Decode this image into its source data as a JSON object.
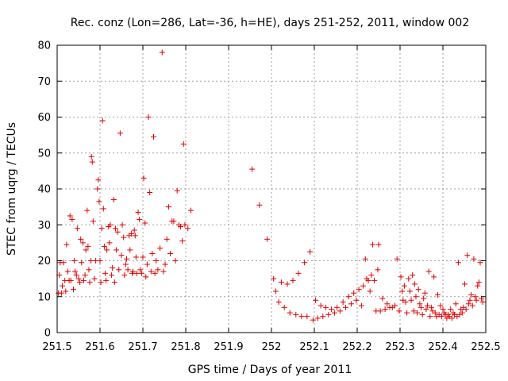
{
  "chart_data": {
    "type": "scatter",
    "title": "Rec. conz (Lon=286, Lat=-36, h=HE), days 251-252, 2011, window 002",
    "xlabel": "GPS time / Days of year 2011",
    "ylabel": "STEC from uqrg / TECUs",
    "xlim": [
      251.5,
      252.5
    ],
    "ylim": [
      0,
      80
    ],
    "xticks": [
      251.5,
      251.6,
      251.7,
      251.8,
      251.9,
      252,
      252.1,
      252.2,
      252.3,
      252.4,
      252.5
    ],
    "xtick_labels": [
      "251.5",
      "251.6",
      "251.7",
      "251.8",
      "251.9",
      "252",
      "252.1",
      "252.2",
      "252.3",
      "252.4",
      "252.5"
    ],
    "yticks": [
      0,
      10,
      20,
      30,
      40,
      50,
      60,
      70,
      80
    ],
    "ytick_labels": [
      "0",
      "10",
      "20",
      "30",
      "40",
      "50",
      "60",
      "70",
      "80"
    ],
    "grid": true,
    "marker": "plus",
    "color": "#e00000",
    "points": [
      [
        251.503,
        11
      ],
      [
        251.505,
        16
      ],
      [
        251.507,
        19.5
      ],
      [
        251.51,
        11
      ],
      [
        251.512,
        13
      ],
      [
        251.515,
        19.5
      ],
      [
        251.518,
        14.5
      ],
      [
        251.52,
        11.5
      ],
      [
        251.522,
        24.5
      ],
      [
        251.525,
        17
      ],
      [
        251.528,
        14.5
      ],
      [
        251.53,
        32.5
      ],
      [
        251.532,
        14.5
      ],
      [
        251.535,
        31.5
      ],
      [
        251.538,
        12
      ],
      [
        251.54,
        20
      ],
      [
        251.542,
        17
      ],
      [
        251.545,
        16
      ],
      [
        251.547,
        29
      ],
      [
        251.55,
        15
      ],
      [
        251.553,
        14
      ],
      [
        251.555,
        26
      ],
      [
        251.557,
        19.5
      ],
      [
        251.56,
        25
      ],
      [
        251.562,
        14.5
      ],
      [
        251.565,
        16
      ],
      [
        251.567,
        23
      ],
      [
        251.57,
        34
      ],
      [
        251.572,
        24
      ],
      [
        251.574,
        17.5
      ],
      [
        251.576,
        14
      ],
      [
        251.579,
        20
      ],
      [
        251.58,
        49
      ],
      [
        251.582,
        47.5
      ],
      [
        251.584,
        31
      ],
      [
        251.587,
        15
      ],
      [
        251.59,
        20
      ],
      [
        251.594,
        40
      ],
      [
        251.596,
        42.5
      ],
      [
        251.598,
        36.5
      ],
      [
        251.6,
        20
      ],
      [
        251.602,
        14
      ],
      [
        251.604,
        29
      ],
      [
        251.606,
        59
      ],
      [
        251.608,
        34.5
      ],
      [
        251.61,
        24
      ],
      [
        251.612,
        16.5
      ],
      [
        251.614,
        14.5
      ],
      [
        251.616,
        23
      ],
      [
        251.62,
        29.5
      ],
      [
        251.622,
        25
      ],
      [
        251.624,
        30
      ],
      [
        251.627,
        16
      ],
      [
        251.629,
        18
      ],
      [
        251.632,
        37
      ],
      [
        251.634,
        14
      ],
      [
        251.636,
        29
      ],
      [
        251.638,
        23
      ],
      [
        251.641,
        28
      ],
      [
        251.644,
        17.5
      ],
      [
        251.647,
        55.5
      ],
      [
        251.65,
        21.5
      ],
      [
        251.652,
        30
      ],
      [
        251.655,
        26.5
      ],
      [
        251.657,
        16
      ],
      [
        251.66,
        19
      ],
      [
        251.662,
        20.5
      ],
      [
        251.665,
        17.5
      ],
      [
        251.668,
        27
      ],
      [
        251.67,
        23
      ],
      [
        251.673,
        27.5
      ],
      [
        251.675,
        16.5
      ],
      [
        251.677,
        17
      ],
      [
        251.68,
        28.5
      ],
      [
        251.682,
        27
      ],
      [
        251.684,
        21
      ],
      [
        251.686,
        16.5
      ],
      [
        251.689,
        33.5
      ],
      [
        251.692,
        31.5
      ],
      [
        251.694,
        17.5
      ],
      [
        251.697,
        16.5
      ],
      [
        251.7,
        21
      ],
      [
        251.702,
        43
      ],
      [
        251.705,
        30.5
      ],
      [
        251.707,
        15.5
      ],
      [
        251.71,
        19
      ],
      [
        251.713,
        60
      ],
      [
        251.716,
        39
      ],
      [
        251.719,
        17
      ],
      [
        251.722,
        22
      ],
      [
        251.725,
        54.5
      ],
      [
        251.728,
        16.5
      ],
      [
        251.731,
        20
      ],
      [
        251.735,
        17.5
      ],
      [
        251.74,
        23.5
      ],
      [
        251.745,
        78
      ],
      [
        251.748,
        17
      ],
      [
        251.752,
        19
      ],
      [
        251.756,
        26
      ],
      [
        251.76,
        35
      ],
      [
        251.764,
        22
      ],
      [
        251.768,
        31
      ],
      [
        251.772,
        31
      ],
      [
        251.776,
        20
      ],
      [
        251.78,
        39.5
      ],
      [
        251.784,
        30
      ],
      [
        251.788,
        29.5
      ],
      [
        251.792,
        25.5
      ],
      [
        251.795,
        52.5
      ],
      [
        251.798,
        30
      ],
      [
        251.805,
        29
      ],
      [
        251.812,
        34
      ],
      [
        251.955,
        45.5
      ],
      [
        251.972,
        35.5
      ],
      [
        251.99,
        26
      ],
      [
        252.005,
        15
      ],
      [
        252.01,
        11.5
      ],
      [
        252.017,
        8.5
      ],
      [
        252.023,
        14
      ],
      [
        252.03,
        7
      ],
      [
        252.037,
        13.5
      ],
      [
        252.043,
        5.5
      ],
      [
        252.05,
        14.5
      ],
      [
        252.057,
        5
      ],
      [
        252.063,
        16.5
      ],
      [
        252.07,
        4.5
      ],
      [
        252.077,
        19.5
      ],
      [
        252.083,
        4.5
      ],
      [
        252.09,
        22.5
      ],
      [
        252.097,
        3.5
      ],
      [
        252.103,
        9
      ],
      [
        252.108,
        4
      ],
      [
        252.115,
        7.5
      ],
      [
        252.12,
        4.5
      ],
      [
        252.127,
        7
      ],
      [
        252.133,
        5
      ],
      [
        252.14,
        6.5
      ],
      [
        252.147,
        5.5
      ],
      [
        252.153,
        7
      ],
      [
        252.16,
        6
      ],
      [
        252.167,
        8.5
      ],
      [
        252.173,
        7
      ],
      [
        252.18,
        10
      ],
      [
        252.186,
        8
      ],
      [
        252.192,
        11
      ],
      [
        252.198,
        9
      ],
      [
        252.204,
        12
      ],
      [
        252.21,
        7.5
      ],
      [
        252.214,
        13
      ],
      [
        252.219,
        20.5
      ],
      [
        252.222,
        15
      ],
      [
        252.226,
        14.5
      ],
      [
        252.23,
        11.5
      ],
      [
        252.233,
        16
      ],
      [
        252.236,
        24.5
      ],
      [
        252.24,
        14.5
      ],
      [
        252.244,
        6
      ],
      [
        252.248,
        17.5
      ],
      [
        252.25,
        24.5
      ],
      [
        252.254,
        6
      ],
      [
        252.259,
        9.5
      ],
      [
        252.265,
        6.5
      ],
      [
        252.27,
        8
      ],
      [
        252.276,
        7
      ],
      [
        252.282,
        7
      ],
      [
        252.288,
        7.5
      ],
      [
        252.293,
        20.5
      ],
      [
        252.298,
        6
      ],
      [
        252.302,
        15.5
      ],
      [
        252.305,
        11.5
      ],
      [
        252.307,
        9
      ],
      [
        252.31,
        13
      ],
      [
        252.313,
        8.5
      ],
      [
        252.316,
        5.5
      ],
      [
        252.32,
        15
      ],
      [
        252.323,
        11.5
      ],
      [
        252.326,
        9
      ],
      [
        252.329,
        16
      ],
      [
        252.332,
        6
      ],
      [
        252.334,
        13.5
      ],
      [
        252.337,
        10
      ],
      [
        252.34,
        5.5
      ],
      [
        252.343,
        12
      ],
      [
        252.346,
        8
      ],
      [
        252.349,
        7
      ],
      [
        252.352,
        5
      ],
      [
        252.355,
        9.5
      ],
      [
        252.358,
        11
      ],
      [
        252.361,
        6.5
      ],
      [
        252.364,
        7.5
      ],
      [
        252.367,
        17
      ],
      [
        252.37,
        4.5
      ],
      [
        252.373,
        7
      ],
      [
        252.376,
        6
      ],
      [
        252.379,
        15.5
      ],
      [
        252.382,
        5.5
      ],
      [
        252.385,
        4.5
      ],
      [
        252.388,
        10.5
      ],
      [
        252.391,
        5
      ],
      [
        252.394,
        7.5
      ],
      [
        252.397,
        4.5
      ],
      [
        252.4,
        6.5
      ],
      [
        252.403,
        5.5
      ],
      [
        252.406,
        5
      ],
      [
        252.409,
        4
      ],
      [
        252.412,
        5
      ],
      [
        252.415,
        4.5
      ],
      [
        252.418,
        6.5
      ],
      [
        252.421,
        4
      ],
      [
        252.424,
        5.5
      ],
      [
        252.427,
        5
      ],
      [
        252.43,
        8
      ],
      [
        252.433,
        4.5
      ],
      [
        252.436,
        19.5
      ],
      [
        252.439,
        5
      ],
      [
        252.442,
        6.5
      ],
      [
        252.445,
        5.5
      ],
      [
        252.448,
        7
      ],
      [
        252.451,
        13.5
      ],
      [
        252.454,
        6.5
      ],
      [
        252.457,
        21.5
      ],
      [
        252.46,
        8
      ],
      [
        252.463,
        9
      ],
      [
        252.466,
        10.5
      ],
      [
        252.469,
        7.5
      ],
      [
        252.472,
        20.5
      ],
      [
        252.475,
        10
      ],
      [
        252.478,
        9
      ],
      [
        252.481,
        13
      ],
      [
        252.484,
        14
      ],
      [
        252.487,
        19.5
      ],
      [
        252.49,
        9.5
      ],
      [
        252.493,
        8.5
      ]
    ]
  }
}
